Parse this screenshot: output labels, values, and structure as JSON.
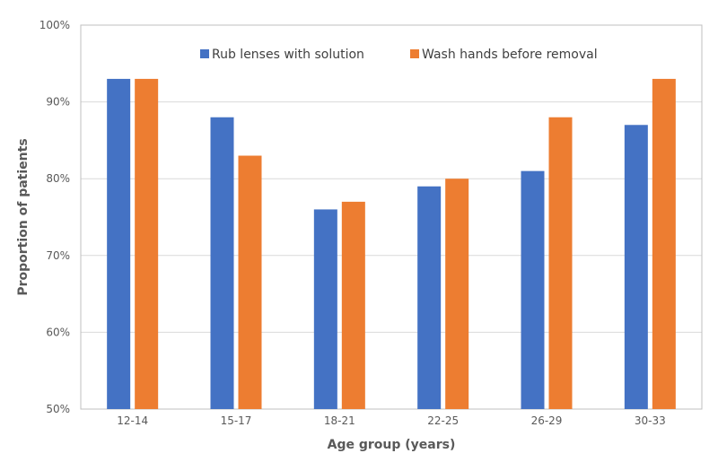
{
  "chart_data": {
    "type": "bar",
    "categories": [
      "12-14",
      "15-17",
      "18-21",
      "22-25",
      "26-29",
      "30-33"
    ],
    "series": [
      {
        "name": "Rub lenses with solution",
        "values": [
          93,
          88,
          76,
          79,
          81,
          87
        ],
        "color": "#4472C4"
      },
      {
        "name": "Wash hands before removal",
        "values": [
          93,
          83,
          77,
          80,
          88,
          93
        ],
        "color": "#ED7D31"
      }
    ],
    "xlabel": "Age group (years)",
    "ylabel": "Proportion of patients",
    "ylim": [
      50,
      100
    ],
    "yticks": [
      "50%",
      "60%",
      "70%",
      "80%",
      "90%",
      "100%"
    ],
    "grid": true,
    "legend_position": "top-center"
  }
}
